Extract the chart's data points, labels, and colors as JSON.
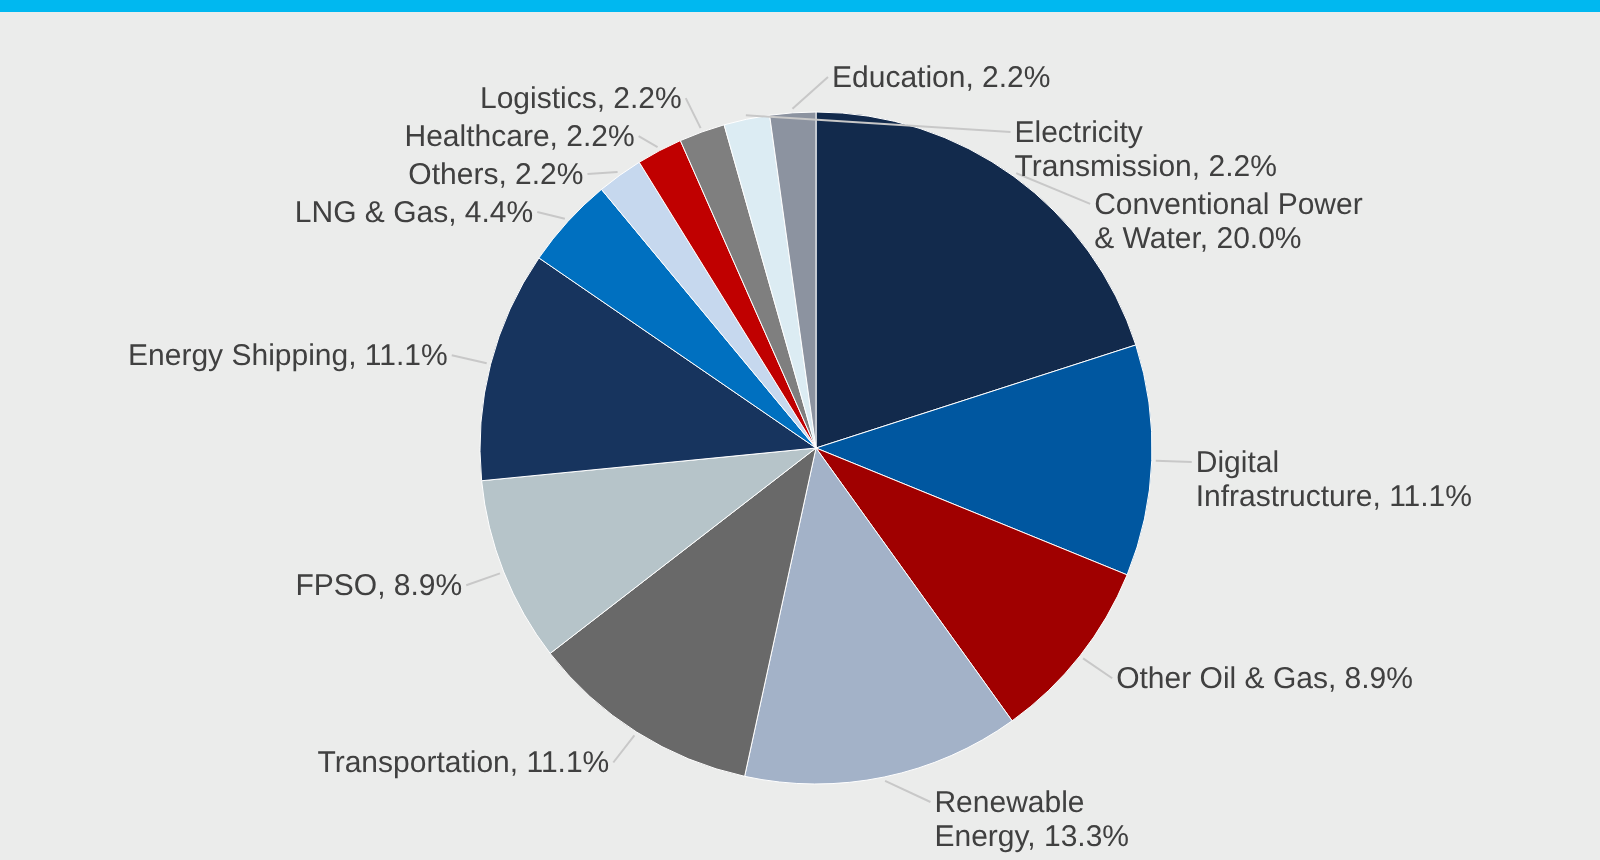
{
  "chart_data": {
    "type": "pie",
    "categories": [
      "Conventional Power & Water",
      "Digital Infrastructure",
      "Other Oil & Gas",
      "Renewable Energy",
      "Transportation",
      "FPSO",
      "Energy Shipping",
      "LNG & Gas",
      "Others",
      "Healthcare",
      "Logistics",
      "Electricity Transmission",
      "Education"
    ],
    "values": [
      20.0,
      11.1,
      8.9,
      13.3,
      11.1,
      8.9,
      11.1,
      4.4,
      2.2,
      2.2,
      2.2,
      2.2,
      2.2
    ],
    "value_labels": [
      "20.0%",
      "11.1%",
      "8.9%",
      "13.3%",
      "11.1%",
      "8.9%",
      "11.1%",
      "4.4%",
      "2.2%",
      "2.2%",
      "2.2%",
      "2.2%",
      "2.2%"
    ],
    "colors": [
      "#122a4c",
      "#0057a0",
      "#a00000",
      "#a3b2c8",
      "#696969",
      "#b6c4c9",
      "#17345e",
      "#0070c0",
      "#c6d8ee",
      "#c00000",
      "#7f7f7f",
      "#dcecf3",
      "#8c93a0"
    ]
  }
}
